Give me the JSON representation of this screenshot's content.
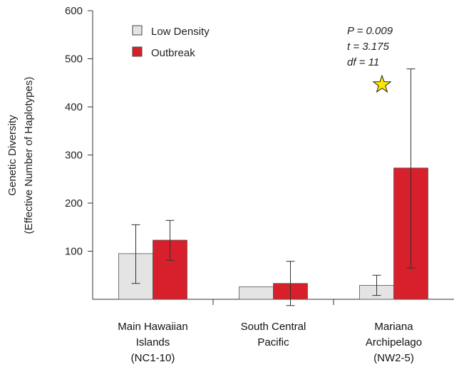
{
  "chart_data": {
    "type": "bar",
    "ylabel_lines": [
      "Genetic Diversity",
      "(Effective Number of Haplotypes)"
    ],
    "xlabel": "",
    "ylim": [
      0,
      600
    ],
    "yticks": [
      100,
      200,
      300,
      400,
      500,
      600
    ],
    "categories": [
      [
        "Main Hawaiian",
        "Islands",
        "(NC1-10)"
      ],
      [
        "South Central",
        "Pacific"
      ],
      [
        "Mariana",
        "Archipelago",
        "(NW2-5)"
      ]
    ],
    "series": [
      {
        "name": "Low Density",
        "color": "#e4e4e4",
        "values": [
          95,
          26,
          29
        ],
        "error_low": [
          33,
          26,
          8
        ],
        "error_high": [
          155,
          26,
          50
        ]
      },
      {
        "name": "Outbreak",
        "color": "#d7202c",
        "values": [
          123,
          33,
          273
        ],
        "error_low": [
          81,
          -13,
          65
        ],
        "error_high": [
          164,
          79,
          479
        ]
      }
    ],
    "legend_position": "top-left",
    "annotations": {
      "lines": [
        "P = 0.009",
        "t = 3.175",
        "df = 11"
      ],
      "marker": "star-icon",
      "marker_color": "#ffe600"
    },
    "grid": false
  }
}
